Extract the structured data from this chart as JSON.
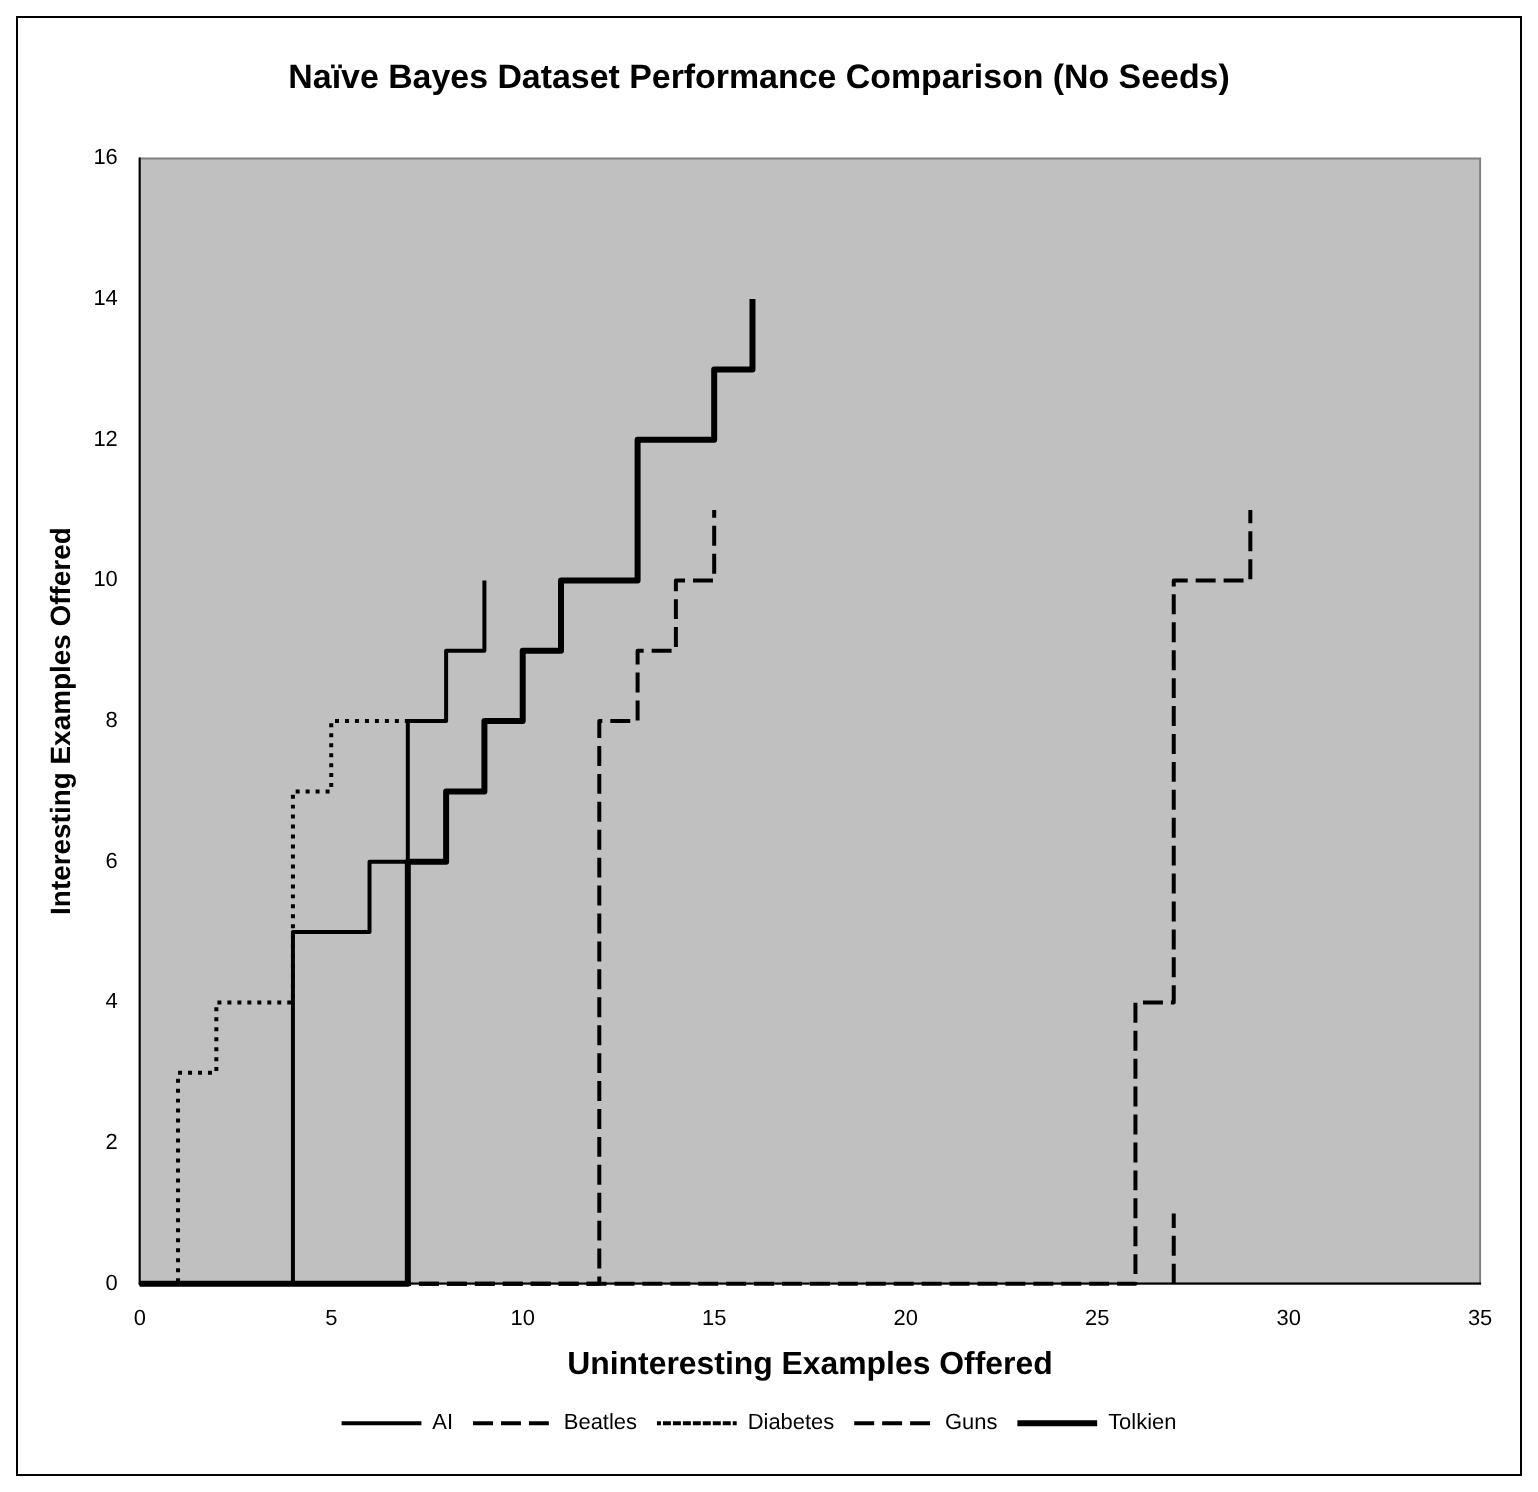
{
  "chart_data": {
    "type": "line",
    "title": "Naïve Bayes Dataset Performance Comparison (No Seeds)",
    "xlabel": "Uninteresting Examples Offered",
    "ylabel": "Interesting Examples Offered",
    "xlim": [
      0,
      35
    ],
    "xticks": [
      0,
      5,
      10,
      15,
      20,
      25,
      30,
      35
    ],
    "ylim": [
      0,
      16
    ],
    "yticks": [
      0,
      2,
      4,
      6,
      8,
      10,
      12,
      14,
      16
    ],
    "grid": false,
    "legend": "bottom",
    "marker": "none",
    "series": [
      {
        "name": "AI",
        "color": "#000000",
        "line_style": "solid",
        "x": [
          0,
          4,
          4,
          6,
          6,
          7,
          7,
          8,
          8,
          9,
          9
        ],
        "values": [
          0,
          0,
          5,
          5,
          6,
          6,
          8,
          8,
          9,
          9,
          10
        ]
      },
      {
        "name": "Beatles",
        "color": "#000000",
        "line_style": "dashed",
        "x": [
          0,
          12,
          12,
          13,
          13,
          14,
          14,
          15,
          15
        ],
        "values": [
          0,
          0,
          8,
          8,
          9,
          9,
          10,
          10,
          11
        ]
      },
      {
        "name": "Diabetes",
        "color": "#000000",
        "line_style": "dotted",
        "x": [
          0,
          1,
          1,
          2,
          2,
          4,
          4,
          5,
          5,
          7
        ],
        "values": [
          0,
          0,
          3,
          3,
          4,
          4,
          7,
          7,
          8,
          8
        ]
      },
      {
        "name": "Guns",
        "color": "#000000",
        "line_style": "dashed",
        "x": [
          27,
          27
        ],
        "values": [
          0,
          1
        ]
      },
      {
        "color": "#000000",
        "line_style": "dashed",
        "x": [
          0,
          26,
          26,
          27,
          27,
          29,
          29
        ],
        "values": [
          0,
          0,
          4,
          4,
          10,
          10,
          11
        ]
      },
      {
        "name": "Tolkien",
        "color": "#000000",
        "line_style": "solid",
        "x": [
          0,
          7,
          7,
          8,
          8,
          9,
          9,
          10,
          10,
          11,
          11,
          13,
          13,
          15,
          15,
          16,
          16
        ],
        "values": [
          0,
          0,
          6,
          6,
          7,
          7,
          8,
          8,
          9,
          9,
          10,
          10,
          12,
          12,
          13,
          13,
          14
        ]
      }
    ]
  }
}
